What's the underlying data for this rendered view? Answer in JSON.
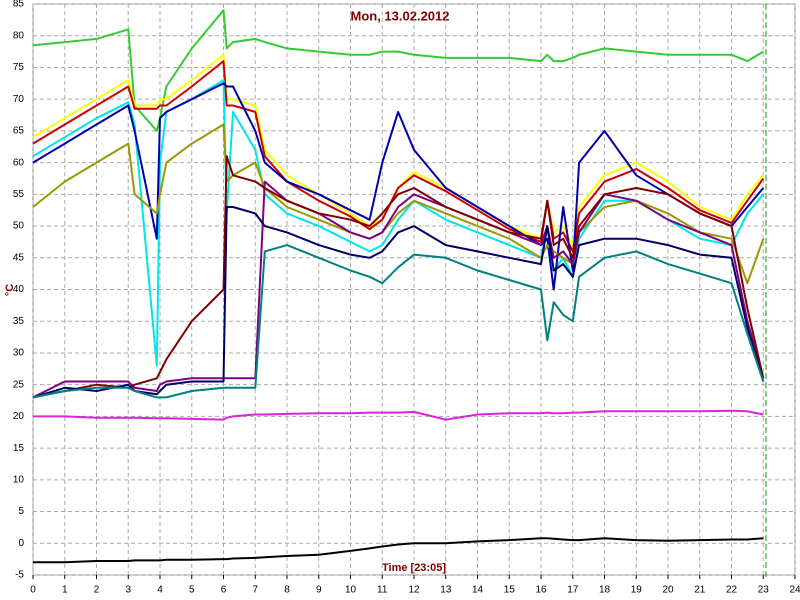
{
  "chart_data": {
    "type": "line",
    "title": "Mon, 13.02.2012",
    "x_label": "Time [23:05]",
    "y_label": "°C",
    "xlim": [
      0,
      24
    ],
    "xticks": [
      0,
      1,
      2,
      3,
      4,
      5,
      6,
      7,
      8,
      9,
      10,
      11,
      12,
      13,
      14,
      15,
      16,
      17,
      18,
      19,
      20,
      21,
      22,
      23,
      24
    ],
    "ylim": [
      -5,
      85
    ],
    "yticks": [
      -5,
      0,
      5,
      10,
      15,
      20,
      25,
      30,
      35,
      40,
      45,
      50,
      55,
      60,
      65,
      70,
      75,
      80,
      85
    ],
    "grid": true,
    "x": [
      0,
      1,
      2,
      3,
      3.2,
      3.9,
      4,
      4.2,
      5,
      6,
      6.1,
      6.3,
      7,
      7.3,
      8,
      9,
      10,
      10.6,
      11,
      11.5,
      12,
      13,
      14,
      15,
      16,
      16.2,
      16.4,
      16.7,
      17,
      17.2,
      18,
      19,
      20,
      21,
      22,
      22.5,
      23
    ],
    "series": [
      {
        "color": "#33cc33",
        "values": [
          78.5,
          79,
          79.5,
          81,
          69,
          65,
          67,
          72,
          78,
          84,
          78,
          79,
          79.5,
          79,
          78,
          77.5,
          77,
          77,
          77.5,
          77.5,
          77,
          76.5,
          76.5,
          76.5,
          76,
          77,
          76,
          76,
          76.5,
          77,
          78,
          77.5,
          77,
          77,
          77,
          76,
          77.5
        ]
      },
      {
        "color": "#ffff00",
        "values": [
          64,
          67,
          70,
          73,
          69,
          69,
          70,
          70,
          73,
          77,
          70,
          70,
          69,
          62,
          58,
          55,
          52,
          50,
          51,
          56,
          58.5,
          56,
          53,
          50,
          48,
          54,
          49,
          50,
          47,
          53,
          58,
          60,
          57,
          53,
          51,
          55,
          58
        ]
      },
      {
        "color": "#cc0000",
        "values": [
          63,
          66,
          69,
          72,
          68.5,
          68.5,
          69,
          69,
          72,
          76,
          69,
          69,
          68,
          61,
          57,
          54,
          51.5,
          49.5,
          51,
          56,
          58,
          55.5,
          52.5,
          49.5,
          47.5,
          54,
          48,
          49,
          46,
          52,
          57,
          59,
          56,
          52.5,
          50.5,
          54,
          57.5
        ]
      },
      {
        "color": "#00e5e5",
        "values": [
          61,
          64,
          67,
          69.5,
          66,
          28,
          60,
          68,
          70,
          73,
          52,
          68,
          62,
          55,
          52,
          50,
          47.5,
          46,
          47,
          51,
          54,
          51,
          49,
          47,
          45,
          50,
          43,
          45,
          42,
          48,
          54,
          54,
          51,
          48,
          47,
          52,
          55
        ]
      },
      {
        "color": "#0000aa",
        "values": [
          60,
          63,
          66,
          69,
          65,
          48,
          67,
          68,
          70,
          72.5,
          72,
          72,
          65,
          60,
          57,
          55,
          52.5,
          51,
          60,
          68,
          62,
          56,
          53,
          50,
          47,
          48,
          40,
          53,
          43,
          60,
          65,
          58,
          55,
          52,
          50,
          53,
          56
        ]
      },
      {
        "color": "#999900",
        "values": [
          53,
          57,
          60,
          63,
          55,
          52,
          55,
          60,
          63,
          66,
          57,
          58,
          60,
          56,
          53,
          51,
          49,
          48,
          49,
          52,
          54,
          52,
          50,
          48,
          45,
          47,
          46,
          45,
          44,
          49,
          53,
          54,
          52,
          49,
          48,
          41,
          48
        ]
      },
      {
        "color": "#800080",
        "values": [
          23,
          25.5,
          25.5,
          25.5,
          24.5,
          24,
          25,
          25.5,
          26,
          26,
          26,
          26,
          26,
          57,
          54,
          52,
          49,
          48,
          49,
          53,
          55,
          53,
          51,
          49,
          47,
          50,
          45,
          46,
          44,
          49,
          55,
          54,
          51,
          49,
          47,
          35,
          26
        ]
      },
      {
        "color": "#800000",
        "values": [
          23,
          24,
          25,
          24.5,
          25,
          26,
          27,
          29,
          35,
          40,
          61,
          58,
          57,
          56,
          54,
          52,
          51,
          50,
          52,
          55,
          56,
          53,
          51,
          49,
          48,
          54,
          47,
          48,
          45,
          50,
          55,
          56,
          55,
          52,
          50,
          37,
          26
        ]
      },
      {
        "color": "#000066",
        "values": [
          23,
          24.5,
          24,
          25,
          24,
          23.5,
          24,
          25,
          25.5,
          25.5,
          53,
          53,
          52,
          50,
          49,
          47,
          45.5,
          45,
          46,
          49,
          50,
          47,
          46,
          45,
          44,
          50,
          43,
          44,
          42,
          47,
          48,
          48,
          47,
          45.5,
          45,
          34,
          25.5
        ]
      },
      {
        "color": "#008080",
        "values": [
          23,
          24,
          24.5,
          24.5,
          24,
          23,
          23,
          23,
          24,
          24.5,
          24.5,
          24.5,
          24.5,
          46,
          47,
          45,
          43,
          42,
          41,
          43.5,
          45.5,
          45,
          43,
          41.5,
          40,
          32,
          38,
          36,
          35,
          42,
          45,
          46,
          44,
          42.5,
          41,
          33,
          25.5
        ]
      },
      {
        "color": "#dd22dd",
        "values": [
          20,
          20,
          19.8,
          19.8,
          19.8,
          19.7,
          19.7,
          19.7,
          19.6,
          19.5,
          19.8,
          20,
          20.3,
          20.3,
          20.4,
          20.5,
          20.5,
          20.6,
          20.6,
          20.6,
          20.7,
          19.5,
          20.3,
          20.5,
          20.5,
          20.6,
          20.5,
          20.5,
          20.6,
          20.6,
          20.8,
          20.8,
          20.8,
          20.8,
          20.9,
          20.8,
          20.3
        ]
      },
      {
        "color": "#000000",
        "values": [
          -3,
          -3,
          -2.8,
          -2.8,
          -2.7,
          -2.7,
          -2.7,
          -2.6,
          -2.6,
          -2.5,
          -2.5,
          -2.4,
          -2.3,
          -2.2,
          -2,
          -1.8,
          -1.2,
          -0.8,
          -0.5,
          -0.2,
          0,
          0,
          0.3,
          0.5,
          0.8,
          0.8,
          0.7,
          0.6,
          0.5,
          0.5,
          0.8,
          0.5,
          0.4,
          0.5,
          0.6,
          0.6,
          0.8
        ]
      }
    ]
  }
}
